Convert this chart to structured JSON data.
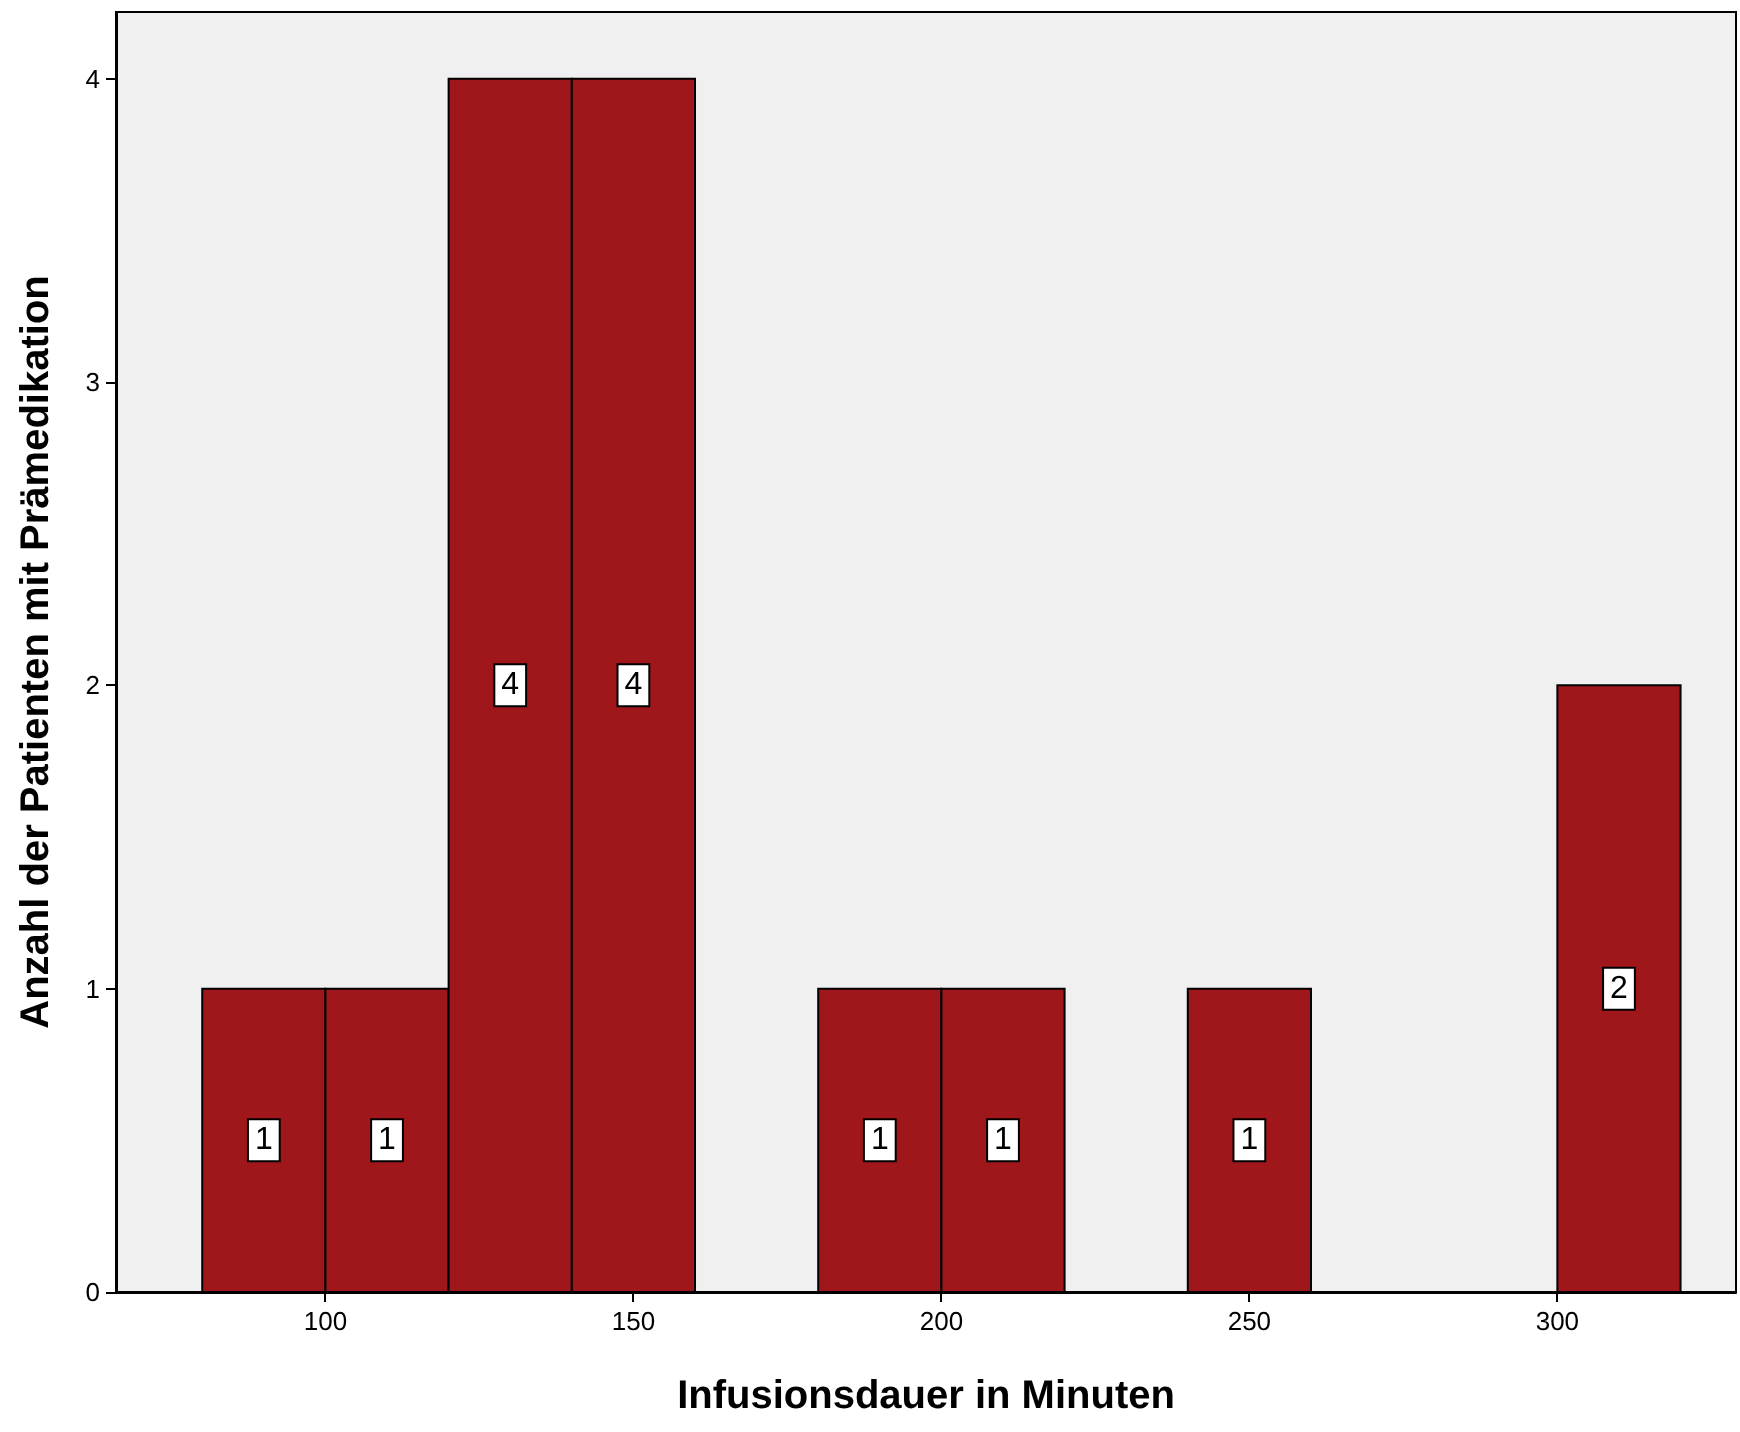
{
  "chart_data": {
    "type": "histogram",
    "xlabel": "Infusionsdauer in Minuten",
    "ylabel": "Anzahl der Patienten mit Prämedikation",
    "bins": [
      80,
      100,
      120,
      140,
      160,
      180,
      200,
      220,
      240,
      260,
      280,
      300,
      320
    ],
    "values": [
      1,
      1,
      4,
      4,
      0,
      1,
      1,
      0,
      1,
      0,
      0,
      2
    ],
    "value_labels": [
      "1",
      "1",
      "4",
      "4",
      null,
      "1",
      "1",
      null,
      "1",
      null,
      null,
      "2"
    ],
    "color": "#a0171b",
    "grid": false,
    "xlim": [
      66,
      329
    ],
    "xticks": [
      100,
      150,
      200,
      250,
      300
    ],
    "ylim": [
      0,
      4.22
    ],
    "yticks": [
      0,
      1,
      2,
      3,
      4
    ]
  }
}
